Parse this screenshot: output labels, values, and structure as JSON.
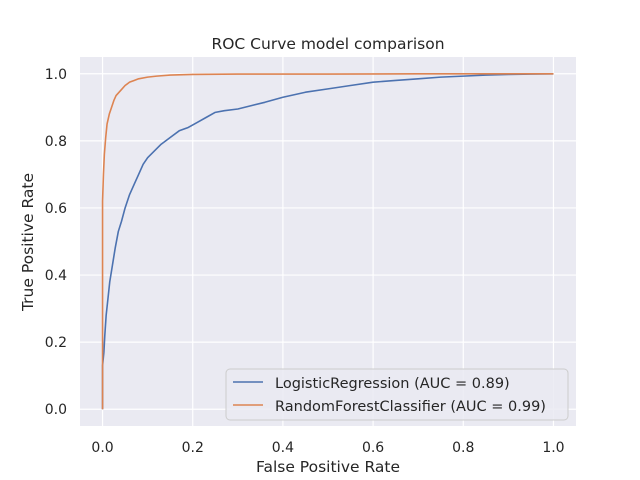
{
  "chart_data": {
    "type": "line",
    "title": "ROC Curve model comparison",
    "xlabel": "False Positive Rate",
    "ylabel": "True Positive Rate",
    "xlim": [
      -0.05,
      1.05
    ],
    "ylim": [
      -0.05,
      1.05
    ],
    "xticks": [
      0.0,
      0.2,
      0.4,
      0.6,
      0.8,
      1.0
    ],
    "yticks": [
      0.0,
      0.2,
      0.4,
      0.6,
      0.8,
      1.0
    ],
    "xtick_labels": [
      "0.0",
      "0.2",
      "0.4",
      "0.6",
      "0.8",
      "1.0"
    ],
    "ytick_labels": [
      "0.0",
      "0.2",
      "0.4",
      "0.6",
      "0.8",
      "1.0"
    ],
    "grid": true,
    "legend_position": "lower-right",
    "background_color": "#eaeaf2",
    "grid_color": "#ffffff",
    "series": [
      {
        "name": "LogisticRegression (AUC = 0.89)",
        "color": "#4c72b0",
        "x": [
          0.0,
          0.0,
          0.003,
          0.005,
          0.008,
          0.012,
          0.016,
          0.022,
          0.028,
          0.035,
          0.042,
          0.05,
          0.06,
          0.07,
          0.08,
          0.09,
          0.1,
          0.115,
          0.13,
          0.15,
          0.17,
          0.19,
          0.21,
          0.23,
          0.25,
          0.27,
          0.3,
          0.33,
          0.36,
          0.4,
          0.45,
          0.5,
          0.55,
          0.6,
          0.65,
          0.7,
          0.75,
          0.8,
          0.85,
          0.9,
          0.95,
          1.0
        ],
        "y": [
          0.0,
          0.13,
          0.17,
          0.22,
          0.28,
          0.33,
          0.38,
          0.43,
          0.48,
          0.53,
          0.56,
          0.6,
          0.64,
          0.67,
          0.7,
          0.73,
          0.75,
          0.77,
          0.79,
          0.81,
          0.83,
          0.84,
          0.855,
          0.87,
          0.885,
          0.89,
          0.895,
          0.905,
          0.915,
          0.93,
          0.945,
          0.955,
          0.965,
          0.975,
          0.98,
          0.985,
          0.99,
          0.993,
          0.996,
          0.998,
          0.999,
          1.0
        ]
      },
      {
        "name": "RandomForestClassifier (AUC = 0.99)",
        "color": "#dd8452",
        "x": [
          0.0,
          0.0,
          0.002,
          0.004,
          0.007,
          0.01,
          0.015,
          0.02,
          0.025,
          0.03,
          0.04,
          0.05,
          0.06,
          0.07,
          0.08,
          0.1,
          0.12,
          0.15,
          0.2,
          0.3,
          0.5,
          0.7,
          0.85,
          1.0
        ],
        "y": [
          0.0,
          0.62,
          0.7,
          0.76,
          0.81,
          0.85,
          0.88,
          0.9,
          0.92,
          0.935,
          0.95,
          0.965,
          0.975,
          0.98,
          0.985,
          0.99,
          0.993,
          0.996,
          0.998,
          0.999,
          0.999,
          1.0,
          1.0,
          1.0
        ]
      }
    ]
  }
}
